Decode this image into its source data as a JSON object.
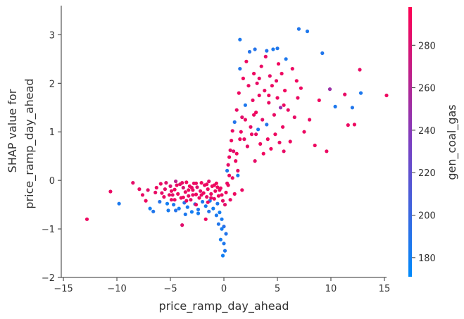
{
  "chart_data": {
    "type": "scatter",
    "title": "",
    "xlabel": "price_ramp_day_ahead",
    "ylabel_lines": [
      "SHAP value for",
      "price_ramp_day_ahead"
    ],
    "xlim": [
      -15.2,
      15.2
    ],
    "ylim": [
      -2,
      3.6
    ],
    "x_ticks": [
      -15,
      -10,
      -5,
      0,
      5,
      10,
      15
    ],
    "y_ticks": [
      -2,
      -1,
      0,
      1,
      2,
      3
    ],
    "grid": false,
    "colorbar": {
      "label": "gen_coal_gas",
      "range": [
        171,
        298
      ],
      "ticks": [
        180,
        200,
        220,
        240,
        260,
        280
      ],
      "color_low": "#008afb",
      "color_high": "#ff0052"
    },
    "points": [
      [
        -12.8,
        -0.8,
        290
      ],
      [
        -10.6,
        -0.23,
        288
      ],
      [
        -9.8,
        -0.48,
        185
      ],
      [
        -8.5,
        -0.05,
        285
      ],
      [
        -7.6,
        -0.3,
        287
      ],
      [
        -7.1,
        -0.2,
        283
      ],
      [
        -6.9,
        -0.58,
        180
      ],
      [
        -6.6,
        -0.64,
        188
      ],
      [
        -6.3,
        -0.15,
        289
      ],
      [
        -6.0,
        -0.44,
        190
      ],
      [
        -5.8,
        -0.26,
        286
      ],
      [
        -5.6,
        -0.34,
        288
      ],
      [
        -5.4,
        -0.05,
        282
      ],
      [
        -5.2,
        -0.62,
        184
      ],
      [
        -5.0,
        -0.12,
        280
      ],
      [
        -4.9,
        -0.4,
        287
      ],
      [
        -4.7,
        -0.5,
        186
      ],
      [
        -4.6,
        -0.19,
        289
      ],
      [
        -4.5,
        -0.02,
        265
      ],
      [
        -4.3,
        -0.28,
        290
      ],
      [
        -4.2,
        -0.58,
        182
      ],
      [
        -4.1,
        -0.08,
        285
      ],
      [
        -4.0,
        -0.36,
        288
      ],
      [
        -3.9,
        -0.92,
        283
      ],
      [
        -3.8,
        -0.15,
        279
      ],
      [
        -3.7,
        -0.46,
        192
      ],
      [
        -3.6,
        -0.24,
        288
      ],
      [
        -3.5,
        -0.04,
        291
      ],
      [
        -3.4,
        -0.55,
        183
      ],
      [
        -3.3,
        -0.32,
        286
      ],
      [
        -3.2,
        -0.12,
        289
      ],
      [
        -3.1,
        -0.4,
        284
      ],
      [
        -3.0,
        -0.65,
        181
      ],
      [
        -2.9,
        -0.2,
        289
      ],
      [
        -2.8,
        -0.06,
        287
      ],
      [
        -2.7,
        -0.49,
        195
      ],
      [
        -2.6,
        -0.29,
        290
      ],
      [
        -2.5,
        -0.14,
        282
      ],
      [
        -2.4,
        -0.6,
        188
      ],
      [
        -2.3,
        -0.36,
        289
      ],
      [
        -2.2,
        -0.22,
        285
      ],
      [
        -2.1,
        -0.05,
        291
      ],
      [
        -2.0,
        -0.44,
        186
      ],
      [
        -1.9,
        -0.26,
        290
      ],
      [
        -1.8,
        -0.1,
        288
      ],
      [
        -1.7,
        -0.53,
        184
      ],
      [
        -1.6,
        -0.34,
        287
      ],
      [
        -1.5,
        -0.18,
        290
      ],
      [
        -1.4,
        -0.02,
        283
      ],
      [
        -1.3,
        -0.42,
        191
      ],
      [
        -1.2,
        -0.28,
        288
      ],
      [
        -1.1,
        -0.12,
        290
      ],
      [
        -1.0,
        -0.58,
        182
      ],
      [
        -0.9,
        -0.38,
        286
      ],
      [
        -0.8,
        -0.22,
        289
      ],
      [
        -0.7,
        -0.06,
        291
      ],
      [
        -0.6,
        -0.48,
        187
      ],
      [
        -0.5,
        -0.32,
        288
      ],
      [
        -0.4,
        -0.66,
        181
      ],
      [
        -0.3,
        -0.16,
        289
      ],
      [
        -0.2,
        -0.8,
        184
      ],
      [
        -0.1,
        -0.42,
        286
      ],
      [
        0.0,
        -0.95,
        192
      ],
      [
        -0.3,
        -1.22,
        183
      ],
      [
        -0.1,
        -1.55,
        180
      ],
      [
        0.1,
        -1.45,
        186
      ],
      [
        0.2,
        -1.1,
        189
      ],
      [
        -4.8,
        -0.3,
        284
      ],
      [
        -3.5,
        -0.42,
        290
      ],
      [
        -2.9,
        -0.3,
        287
      ],
      [
        -1.5,
        -0.45,
        289
      ],
      [
        -0.9,
        -0.1,
        290
      ],
      [
        -0.4,
        -0.2,
        288
      ],
      [
        0.1,
        -0.5,
        285
      ],
      [
        0.2,
        -0.25,
        290
      ],
      [
        0.3,
        -0.06,
        287
      ],
      [
        0.3,
        0.2,
        189
      ],
      [
        0.4,
        0.32,
        286
      ],
      [
        0.5,
        0.48,
        289
      ],
      [
        0.6,
        0.62,
        285
      ],
      [
        0.7,
        0.82,
        290
      ],
      [
        0.8,
        1.02,
        288
      ],
      [
        0.9,
        0.6,
        283
      ],
      [
        1.0,
        1.2,
        190
      ],
      [
        1.1,
        0.4,
        289
      ],
      [
        1.2,
        1.45,
        287
      ],
      [
        1.3,
        0.2,
        285
      ],
      [
        1.4,
        1.8,
        290
      ],
      [
        1.5,
        2.3,
        188
      ],
      [
        1.6,
        1.0,
        289
      ],
      [
        1.7,
        1.3,
        284
      ],
      [
        1.8,
        2.1,
        291
      ],
      [
        1.9,
        0.85,
        288
      ],
      [
        2.0,
        1.55,
        186
      ],
      [
        2.1,
        2.45,
        290
      ],
      [
        2.2,
        0.7,
        287
      ],
      [
        2.3,
        1.95,
        289
      ],
      [
        2.4,
        2.65,
        190
      ],
      [
        2.5,
        1.1,
        285
      ],
      [
        2.6,
        0.95,
        289
      ],
      [
        2.7,
        1.65,
        288
      ],
      [
        2.8,
        2.2,
        290
      ],
      [
        2.9,
        0.4,
        286
      ],
      [
        3.0,
        1.4,
        291
      ],
      [
        3.1,
        2.0,
        287
      ],
      [
        3.2,
        1.05,
        184
      ],
      [
        3.3,
        1.75,
        289
      ],
      [
        3.4,
        0.75,
        290
      ],
      [
        3.5,
        2.35,
        288
      ],
      [
        3.6,
        1.25,
        285
      ],
      [
        3.7,
        0.55,
        291
      ],
      [
        3.8,
        1.85,
        289
      ],
      [
        3.9,
        2.55,
        287
      ],
      [
        4.0,
        1.15,
        190
      ],
      [
        4.1,
        0.85,
        290
      ],
      [
        4.2,
        1.6,
        288
      ],
      [
        4.3,
        2.15,
        286
      ],
      [
        4.4,
        0.65,
        291
      ],
      [
        4.5,
        1.95,
        289
      ],
      [
        4.6,
        2.7,
        185
      ],
      [
        4.7,
        1.35,
        288
      ],
      [
        4.8,
        0.95,
        290
      ],
      [
        4.9,
        2.05,
        287
      ],
      [
        5.0,
        1.7,
        289
      ],
      [
        5.1,
        2.4,
        291
      ],
      [
        5.2,
        0.78,
        288
      ],
      [
        5.3,
        1.5,
        246
      ],
      [
        5.4,
        2.2,
        290
      ],
      [
        5.5,
        1.1,
        289
      ],
      [
        5.6,
        0.6,
        287
      ],
      [
        5.7,
        1.85,
        291
      ],
      [
        5.8,
        2.5,
        186
      ],
      [
        6.0,
        1.45,
        288
      ],
      [
        6.2,
        0.8,
        290
      ],
      [
        6.4,
        2.3,
        289
      ],
      [
        6.6,
        1.3,
        287
      ],
      [
        6.8,
        2.05,
        291
      ],
      [
        7.0,
        3.12,
        188
      ],
      [
        7.2,
        1.9,
        290
      ],
      [
        7.5,
        1.0,
        289
      ],
      [
        7.8,
        3.07,
        186
      ],
      [
        8.0,
        1.25,
        288
      ],
      [
        8.5,
        0.72,
        290
      ],
      [
        8.9,
        1.65,
        291
      ],
      [
        9.2,
        2.62,
        188
      ],
      [
        9.6,
        0.6,
        289
      ],
      [
        9.9,
        1.88,
        250
      ],
      [
        10.4,
        1.52,
        186
      ],
      [
        11.3,
        1.77,
        287
      ],
      [
        11.6,
        1.14,
        289
      ],
      [
        12.0,
        1.5,
        188
      ],
      [
        12.2,
        1.15,
        290
      ],
      [
        12.7,
        2.28,
        287
      ],
      [
        12.8,
        1.8,
        186
      ],
      [
        15.2,
        1.75,
        290
      ],
      [
        1.5,
        2.9,
        186
      ],
      [
        2.9,
        2.7,
        190
      ],
      [
        4.0,
        2.67,
        189
      ],
      [
        5.0,
        2.72,
        187
      ],
      [
        1.3,
        0.1,
        185
      ],
      [
        1.0,
        -0.28,
        290
      ],
      [
        1.7,
        -0.2,
        288
      ],
      [
        0.6,
        -0.4,
        287
      ],
      [
        1.5,
        0.85,
        290
      ],
      [
        2.8,
        1.35,
        289
      ],
      [
        3.3,
        2.1,
        287
      ],
      [
        4.2,
        1.75,
        291
      ],
      [
        5.6,
        1.55,
        290
      ],
      [
        6.9,
        1.7,
        288
      ],
      [
        3.0,
        0.95,
        286
      ],
      [
        2.0,
        1.25,
        289
      ],
      [
        1.2,
        0.55,
        291
      ],
      [
        0.8,
        0.05,
        287
      ],
      [
        0.5,
        0.1,
        289
      ],
      [
        0.4,
        -0.1,
        290
      ],
      [
        -5.9,
        -0.07,
        288
      ],
      [
        -5.5,
        -0.18,
        286
      ],
      [
        -4.9,
        -0.22,
        290
      ],
      [
        -4.4,
        -0.1,
        289
      ],
      [
        -3.9,
        -0.05,
        287
      ],
      [
        -3.3,
        -0.2,
        290
      ],
      [
        -2.6,
        -0.06,
        289
      ],
      [
        -2.1,
        -0.3,
        288
      ],
      [
        -1.6,
        -0.08,
        290
      ],
      [
        -1.2,
        -0.36,
        287
      ],
      [
        -0.6,
        -0.14,
        290
      ],
      [
        -0.2,
        -0.3,
        289
      ],
      [
        -6.4,
        -0.25,
        287
      ],
      [
        -7.3,
        -0.42,
        290
      ],
      [
        -7.9,
        -0.18,
        288
      ],
      [
        -5.3,
        -0.48,
        181
      ],
      [
        -4.5,
        -0.62,
        190
      ],
      [
        -3.6,
        -0.7,
        186
      ],
      [
        -2.4,
        -0.68,
        183
      ],
      [
        -1.4,
        -0.64,
        189
      ],
      [
        -0.7,
        -0.72,
        185
      ],
      [
        -0.5,
        -0.9,
        188
      ],
      [
        -0.2,
        -1.0,
        182
      ],
      [
        0.0,
        -1.3,
        187
      ],
      [
        -1.7,
        -0.8,
        290
      ],
      [
        -2.6,
        -0.5,
        289
      ],
      [
        -3.0,
        -0.15,
        287
      ],
      [
        -3.8,
        -0.35,
        290
      ],
      [
        -4.6,
        -0.4,
        288
      ],
      [
        -5.1,
        -0.3,
        289
      ]
    ]
  }
}
